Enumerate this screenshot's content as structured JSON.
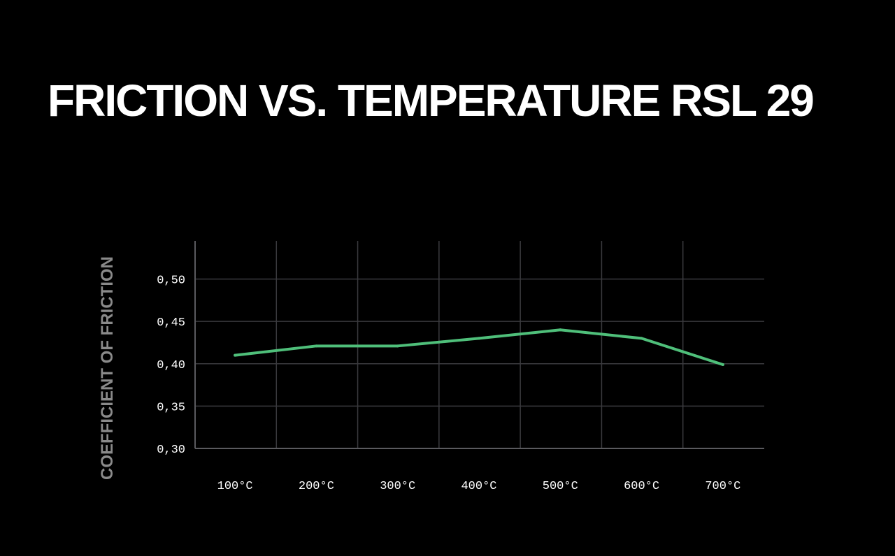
{
  "title": "FRICTION VS. TEMPERATURE RSL 29",
  "colors": {
    "background": "#000000",
    "line": "#4fbf7a",
    "grid": "#3a3a3e",
    "axis": "#5a5a5e",
    "text": "#ffffff",
    "ylabel": "#8a8a8a"
  },
  "chart_data": {
    "type": "line",
    "title": "FRICTION VS. TEMPERATURE RSL 29",
    "xlabel": "",
    "ylabel": "COEFFICIENT OF FRICTION",
    "categories": [
      "100°C",
      "200°C",
      "300°C",
      "400°C",
      "500°C",
      "600°C",
      "700°C"
    ],
    "series": [
      {
        "name": "RSL 29",
        "values": [
          0.41,
          0.421,
          0.421,
          0.43,
          0.44,
          0.43,
          0.399
        ]
      }
    ],
    "yticks": [
      0.3,
      0.35,
      0.4,
      0.45,
      0.5
    ],
    "ytick_labels": [
      "0,30",
      "0,35",
      "0,40",
      "0,45",
      "0,50"
    ],
    "ylim": [
      0.3,
      0.545
    ],
    "grid": true,
    "legend": "none"
  }
}
